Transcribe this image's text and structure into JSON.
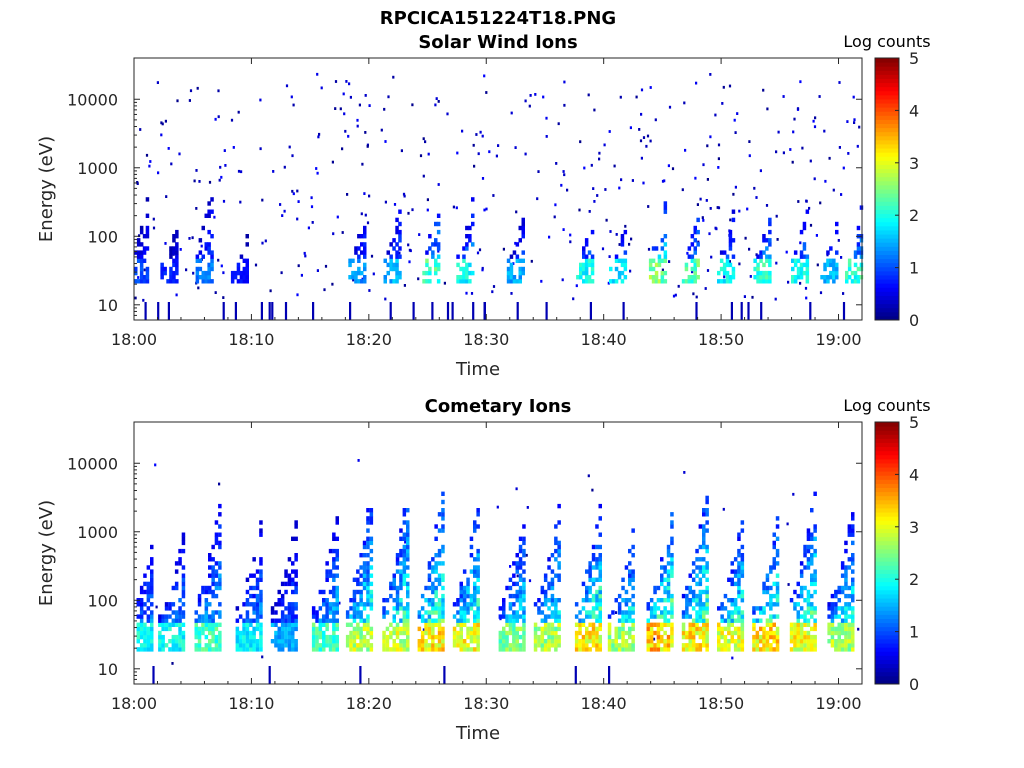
{
  "figure": {
    "filename": "RPCICA151224T18.PNG"
  },
  "chart_data": [
    {
      "type": "heatmap",
      "title": "Solar Wind Ions",
      "xlabel": "Time",
      "ylabel": "Energy (eV)",
      "x_ticks": [
        "18:00",
        "18:10",
        "18:20",
        "18:30",
        "18:40",
        "18:50",
        "19:00"
      ],
      "y_ticks": [
        "10",
        "100",
        "1000",
        "10000"
      ],
      "y_scale": "log",
      "ylim": [
        6,
        40000
      ],
      "xlim": [
        "18:00",
        "19:02"
      ],
      "colorbar": {
        "title": "Log counts",
        "ticks": [
          "0",
          "1",
          "2",
          "3",
          "4",
          "5"
        ],
        "range": [
          0,
          5
        ],
        "colormap": "jet"
      },
      "bursts": [
        {
          "t": 0.5,
          "emin": 20,
          "emax": 700,
          "peak": 1.0
        },
        {
          "t": 3.0,
          "emin": 20,
          "emax": 250,
          "peak": 0.8
        },
        {
          "t": 6.0,
          "emin": 20,
          "emax": 1400,
          "peak": 1.3
        },
        {
          "t": 9.0,
          "emin": 20,
          "emax": 150,
          "peak": 0.7
        },
        {
          "t": 19.0,
          "emin": 20,
          "emax": 400,
          "peak": 1.4
        },
        {
          "t": 22.0,
          "emin": 20,
          "emax": 600,
          "peak": 1.6
        },
        {
          "t": 25.3,
          "emin": 20,
          "emax": 700,
          "peak": 2.3
        },
        {
          "t": 28.2,
          "emin": 20,
          "emax": 600,
          "peak": 2.0
        },
        {
          "t": 32.5,
          "emin": 20,
          "emax": 300,
          "peak": 1.5
        },
        {
          "t": 38.4,
          "emin": 20,
          "emax": 300,
          "peak": 2.0
        },
        {
          "t": 41.2,
          "emin": 20,
          "emax": 200,
          "peak": 1.8
        },
        {
          "t": 44.6,
          "emin": 20,
          "emax": 650,
          "peak": 2.6
        },
        {
          "t": 47.4,
          "emin": 20,
          "emax": 400,
          "peak": 2.4
        },
        {
          "t": 50.4,
          "emin": 20,
          "emax": 400,
          "peak": 2.0
        },
        {
          "t": 53.5,
          "emin": 20,
          "emax": 450,
          "peak": 2.2
        },
        {
          "t": 56.7,
          "emin": 20,
          "emax": 450,
          "peak": 2.0
        },
        {
          "t": 59.2,
          "emin": 20,
          "emax": 300,
          "peak": 1.6
        },
        {
          "t": 61.3,
          "emin": 20,
          "emax": 500,
          "peak": 2.2
        }
      ]
    },
    {
      "type": "heatmap",
      "title": "Cometary Ions",
      "xlabel": "Time",
      "ylabel": "Energy (eV)",
      "x_ticks": [
        "18:00",
        "18:10",
        "18:20",
        "18:30",
        "18:40",
        "18:50",
        "19:00"
      ],
      "y_ticks": [
        "10",
        "100",
        "1000",
        "10000"
      ],
      "y_scale": "log",
      "ylim": [
        6,
        40000
      ],
      "xlim": [
        "18:00",
        "19:02"
      ],
      "colorbar": {
        "title": "Log counts",
        "ticks": [
          "0",
          "1",
          "2",
          "3",
          "4",
          "5"
        ],
        "range": [
          0,
          5
        ],
        "colormap": "jet"
      },
      "bursts": [
        {
          "t": 0.5,
          "emin": 18,
          "emax": 1000,
          "peak": 2.0
        },
        {
          "t": 3.2,
          "emin": 18,
          "emax": 1500,
          "peak": 2.0
        },
        {
          "t": 6.3,
          "emin": 18,
          "emax": 5000,
          "peak": 2.3
        },
        {
          "t": 9.8,
          "emin": 18,
          "emax": 2500,
          "peak": 1.9
        },
        {
          "t": 12.8,
          "emin": 18,
          "emax": 2500,
          "peak": 1.5
        },
        {
          "t": 16.3,
          "emin": 18,
          "emax": 3000,
          "peak": 2.3
        },
        {
          "t": 19.2,
          "emin": 18,
          "emax": 8000,
          "peak": 2.9
        },
        {
          "t": 22.3,
          "emin": 18,
          "emax": 8000,
          "peak": 3.0
        },
        {
          "t": 25.3,
          "emin": 18,
          "emax": 9000,
          "peak": 3.3
        },
        {
          "t": 28.3,
          "emin": 18,
          "emax": 5000,
          "peak": 3.2
        },
        {
          "t": 32.2,
          "emin": 18,
          "emax": 3500,
          "peak": 2.6
        },
        {
          "t": 35.2,
          "emin": 18,
          "emax": 4500,
          "peak": 2.8
        },
        {
          "t": 38.7,
          "emin": 18,
          "emax": 5000,
          "peak": 3.3
        },
        {
          "t": 41.5,
          "emin": 18,
          "emax": 2000,
          "peak": 2.8
        },
        {
          "t": 44.8,
          "emin": 18,
          "emax": 4500,
          "peak": 3.5
        },
        {
          "t": 47.8,
          "emin": 18,
          "emax": 9000,
          "peak": 3.3
        },
        {
          "t": 50.8,
          "emin": 18,
          "emax": 3000,
          "peak": 3.1
        },
        {
          "t": 53.8,
          "emin": 18,
          "emax": 3000,
          "peak": 3.4
        },
        {
          "t": 57.0,
          "emin": 18,
          "emax": 8000,
          "peak": 3.2
        },
        {
          "t": 60.2,
          "emin": 18,
          "emax": 4000,
          "peak": 2.8
        }
      ]
    }
  ]
}
